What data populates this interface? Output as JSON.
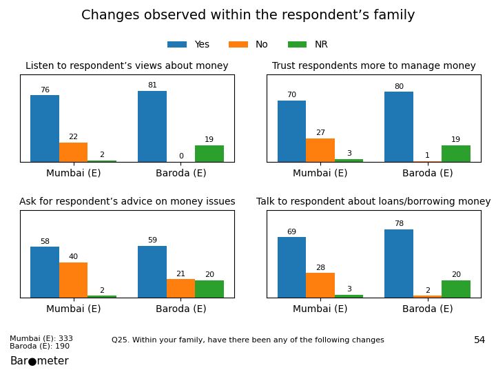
{
  "title": "Changes observed within the respondent’s family",
  "annotations": [
    "Mumbai (E): 333\nBaroda (E): 190",
    "Q25. Within your family, have there been any of the following changes",
    "54",
    "Bar●meter"
  ],
  "chart_data": [
    {
      "type": "bar",
      "title": "Listen to respondent’s views about money",
      "categories": [
        "Mumbai (E)",
        "Baroda (E)"
      ],
      "series": [
        {
          "name": "Yes",
          "values": [
            76,
            81
          ]
        },
        {
          "name": "No",
          "values": [
            22,
            0
          ]
        },
        {
          "name": "NR",
          "values": [
            2,
            19
          ]
        }
      ],
      "ylim": [
        0,
        100
      ],
      "tick_labels": "x",
      "data_labels": true
    },
    {
      "type": "bar",
      "title": "Trust respondents more to manage money",
      "categories": [
        "Mumbai (E)",
        "Baroda (E)"
      ],
      "series": [
        {
          "name": "Yes",
          "values": [
            70,
            80
          ]
        },
        {
          "name": "No",
          "values": [
            27,
            1
          ]
        },
        {
          "name": "NR",
          "values": [
            3,
            19
          ]
        }
      ],
      "ylim": [
        0,
        100
      ],
      "tick_labels": "x",
      "data_labels": true
    },
    {
      "type": "bar",
      "title": "Ask for respondent’s advice on money issues",
      "categories": [
        "Mumbai (E)",
        "Baroda (E)"
      ],
      "series": [
        {
          "name": "Yes",
          "values": [
            58,
            59
          ]
        },
        {
          "name": "No",
          "values": [
            40,
            21
          ]
        },
        {
          "name": "NR",
          "values": [
            2,
            20
          ]
        }
      ],
      "ylim": [
        0,
        100
      ],
      "tick_labels": "x",
      "data_labels": true
    },
    {
      "type": "bar",
      "title": "Talk to respondent about loans/borrowing money",
      "categories": [
        "Mumbai (E)",
        "Baroda (E)"
      ],
      "series": [
        {
          "name": "Yes",
          "values": [
            69,
            78
          ]
        },
        {
          "name": "No",
          "values": [
            28,
            2
          ]
        },
        {
          "name": "NR",
          "values": [
            3,
            20
          ]
        }
      ],
      "ylim": [
        0,
        100
      ],
      "tick_labels": "x",
      "data_labels": true
    }
  ]
}
